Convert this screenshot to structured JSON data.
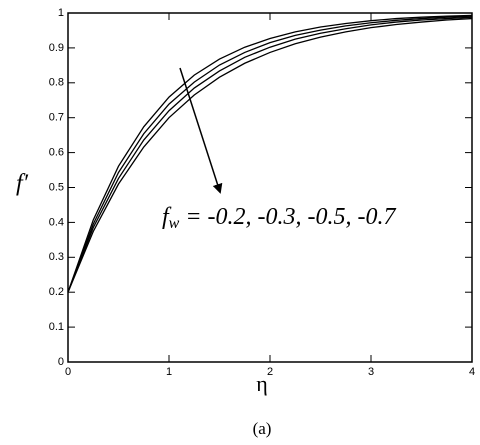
{
  "chart_data": {
    "type": "line",
    "x_label": "η",
    "y_label": "f′",
    "annotation": {
      "text": "f",
      "subscript": "w",
      "rest": " = -0.2, -0.3, -0.5, -0.7"
    },
    "caption": "(a)",
    "x": [
      0,
      0.25,
      0.5,
      0.75,
      1,
      1.25,
      1.5,
      1.75,
      2,
      2.25,
      2.5,
      2.75,
      3,
      3.25,
      3.5,
      3.75,
      4
    ],
    "series": [
      {
        "color": "#000000",
        "values": [
          0.2,
          0.407,
          0.561,
          0.674,
          0.759,
          0.822,
          0.868,
          0.902,
          0.927,
          0.946,
          0.96,
          0.97,
          0.978,
          0.984,
          0.988,
          0.991,
          0.993
        ]
      },
      {
        "color": "#000000",
        "values": [
          0.2,
          0.395,
          0.543,
          0.654,
          0.739,
          0.802,
          0.851,
          0.887,
          0.915,
          0.936,
          0.951,
          0.963,
          0.972,
          0.979,
          0.984,
          0.988,
          0.991
        ]
      },
      {
        "color": "#000000",
        "values": [
          0.2,
          0.385,
          0.526,
          0.636,
          0.72,
          0.785,
          0.834,
          0.873,
          0.902,
          0.925,
          0.942,
          0.955,
          0.966,
          0.974,
          0.98,
          0.984,
          0.988
        ]
      },
      {
        "color": "#000000",
        "values": [
          0.2,
          0.374,
          0.51,
          0.616,
          0.7,
          0.765,
          0.816,
          0.856,
          0.887,
          0.912,
          0.931,
          0.946,
          0.958,
          0.967,
          0.974,
          0.98,
          0.984
        ]
      }
    ],
    "xlim": [
      0,
      4
    ],
    "ylim": [
      0,
      1
    ],
    "xticks": [
      0,
      1,
      2,
      3,
      4
    ],
    "yticks": [
      0,
      0.1,
      0.2,
      0.3,
      0.4,
      0.5,
      0.6,
      0.7,
      0.8,
      0.9,
      1
    ]
  }
}
